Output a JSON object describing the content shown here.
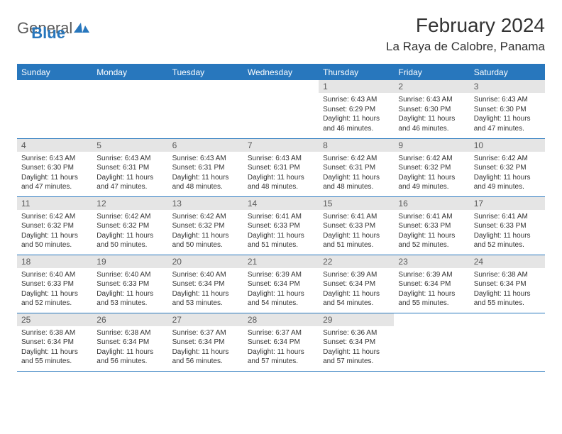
{
  "logo": {
    "text1": "General",
    "text2": "Blue",
    "brand_color": "#2877bd",
    "text_color": "#5a5a5a"
  },
  "title": "February 2024",
  "location": "La Raya de Calobre, Panama",
  "colors": {
    "header_bg": "#2877bd",
    "header_fg": "#ffffff",
    "daynum_bg": "#e5e5e5",
    "daynum_fg": "#5a5a5a",
    "text": "#333333",
    "rule": "#2877bd",
    "background": "#ffffff"
  },
  "weekdays": [
    "Sunday",
    "Monday",
    "Tuesday",
    "Wednesday",
    "Thursday",
    "Friday",
    "Saturday"
  ],
  "weeks": [
    [
      {
        "blank": true
      },
      {
        "blank": true
      },
      {
        "blank": true
      },
      {
        "blank": true
      },
      {
        "day": "1",
        "lines": [
          "Sunrise: 6:43 AM",
          "Sunset: 6:29 PM",
          "Daylight: 11 hours and 46 minutes."
        ]
      },
      {
        "day": "2",
        "lines": [
          "Sunrise: 6:43 AM",
          "Sunset: 6:30 PM",
          "Daylight: 11 hours and 46 minutes."
        ]
      },
      {
        "day": "3",
        "lines": [
          "Sunrise: 6:43 AM",
          "Sunset: 6:30 PM",
          "Daylight: 11 hours and 47 minutes."
        ]
      }
    ],
    [
      {
        "day": "4",
        "lines": [
          "Sunrise: 6:43 AM",
          "Sunset: 6:30 PM",
          "Daylight: 11 hours and 47 minutes."
        ]
      },
      {
        "day": "5",
        "lines": [
          "Sunrise: 6:43 AM",
          "Sunset: 6:31 PM",
          "Daylight: 11 hours and 47 minutes."
        ]
      },
      {
        "day": "6",
        "lines": [
          "Sunrise: 6:43 AM",
          "Sunset: 6:31 PM",
          "Daylight: 11 hours and 48 minutes."
        ]
      },
      {
        "day": "7",
        "lines": [
          "Sunrise: 6:43 AM",
          "Sunset: 6:31 PM",
          "Daylight: 11 hours and 48 minutes."
        ]
      },
      {
        "day": "8",
        "lines": [
          "Sunrise: 6:42 AM",
          "Sunset: 6:31 PM",
          "Daylight: 11 hours and 48 minutes."
        ]
      },
      {
        "day": "9",
        "lines": [
          "Sunrise: 6:42 AM",
          "Sunset: 6:32 PM",
          "Daylight: 11 hours and 49 minutes."
        ]
      },
      {
        "day": "10",
        "lines": [
          "Sunrise: 6:42 AM",
          "Sunset: 6:32 PM",
          "Daylight: 11 hours and 49 minutes."
        ]
      }
    ],
    [
      {
        "day": "11",
        "lines": [
          "Sunrise: 6:42 AM",
          "Sunset: 6:32 PM",
          "Daylight: 11 hours and 50 minutes."
        ]
      },
      {
        "day": "12",
        "lines": [
          "Sunrise: 6:42 AM",
          "Sunset: 6:32 PM",
          "Daylight: 11 hours and 50 minutes."
        ]
      },
      {
        "day": "13",
        "lines": [
          "Sunrise: 6:42 AM",
          "Sunset: 6:32 PM",
          "Daylight: 11 hours and 50 minutes."
        ]
      },
      {
        "day": "14",
        "lines": [
          "Sunrise: 6:41 AM",
          "Sunset: 6:33 PM",
          "Daylight: 11 hours and 51 minutes."
        ]
      },
      {
        "day": "15",
        "lines": [
          "Sunrise: 6:41 AM",
          "Sunset: 6:33 PM",
          "Daylight: 11 hours and 51 minutes."
        ]
      },
      {
        "day": "16",
        "lines": [
          "Sunrise: 6:41 AM",
          "Sunset: 6:33 PM",
          "Daylight: 11 hours and 52 minutes."
        ]
      },
      {
        "day": "17",
        "lines": [
          "Sunrise: 6:41 AM",
          "Sunset: 6:33 PM",
          "Daylight: 11 hours and 52 minutes."
        ]
      }
    ],
    [
      {
        "day": "18",
        "lines": [
          "Sunrise: 6:40 AM",
          "Sunset: 6:33 PM",
          "Daylight: 11 hours and 52 minutes."
        ]
      },
      {
        "day": "19",
        "lines": [
          "Sunrise: 6:40 AM",
          "Sunset: 6:33 PM",
          "Daylight: 11 hours and 53 minutes."
        ]
      },
      {
        "day": "20",
        "lines": [
          "Sunrise: 6:40 AM",
          "Sunset: 6:34 PM",
          "Daylight: 11 hours and 53 minutes."
        ]
      },
      {
        "day": "21",
        "lines": [
          "Sunrise: 6:39 AM",
          "Sunset: 6:34 PM",
          "Daylight: 11 hours and 54 minutes."
        ]
      },
      {
        "day": "22",
        "lines": [
          "Sunrise: 6:39 AM",
          "Sunset: 6:34 PM",
          "Daylight: 11 hours and 54 minutes."
        ]
      },
      {
        "day": "23",
        "lines": [
          "Sunrise: 6:39 AM",
          "Sunset: 6:34 PM",
          "Daylight: 11 hours and 55 minutes."
        ]
      },
      {
        "day": "24",
        "lines": [
          "Sunrise: 6:38 AM",
          "Sunset: 6:34 PM",
          "Daylight: 11 hours and 55 minutes."
        ]
      }
    ],
    [
      {
        "day": "25",
        "lines": [
          "Sunrise: 6:38 AM",
          "Sunset: 6:34 PM",
          "Daylight: 11 hours and 55 minutes."
        ]
      },
      {
        "day": "26",
        "lines": [
          "Sunrise: 6:38 AM",
          "Sunset: 6:34 PM",
          "Daylight: 11 hours and 56 minutes."
        ]
      },
      {
        "day": "27",
        "lines": [
          "Sunrise: 6:37 AM",
          "Sunset: 6:34 PM",
          "Daylight: 11 hours and 56 minutes."
        ]
      },
      {
        "day": "28",
        "lines": [
          "Sunrise: 6:37 AM",
          "Sunset: 6:34 PM",
          "Daylight: 11 hours and 57 minutes."
        ]
      },
      {
        "day": "29",
        "lines": [
          "Sunrise: 6:36 AM",
          "Sunset: 6:34 PM",
          "Daylight: 11 hours and 57 minutes."
        ]
      },
      {
        "blank": true
      },
      {
        "blank": true
      }
    ]
  ]
}
